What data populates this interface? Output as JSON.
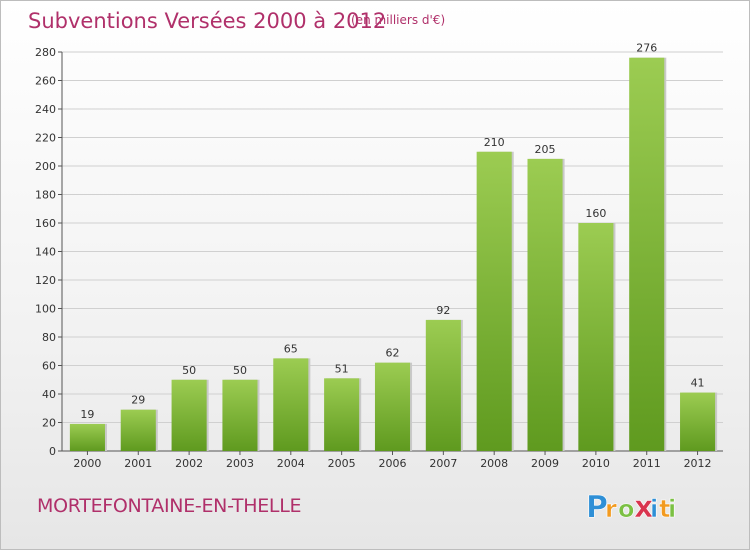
{
  "header": {
    "title": "Subventions Versées 2000 à 2012",
    "unit_note": "(en milliers d'€)"
  },
  "commune": "MORTEFONTAINE-EN-THELLE",
  "logo": {
    "text": "Proxiti",
    "letters": [
      "P",
      "r",
      "o",
      "x",
      "i",
      "t",
      "i"
    ],
    "colors": [
      "#2e8fd6",
      "#f29a1f",
      "#7bc043",
      "#d9344f",
      "#2e8fd6",
      "#f29a1f",
      "#7bc043"
    ]
  },
  "colors": {
    "title": "#b0306a",
    "bar_light": "#9ccc52",
    "bar_dark": "#5f9a1f",
    "grid": "#d0d0d0"
  },
  "chart_data": {
    "type": "bar",
    "title": "Subventions Versées 2000 à 2012",
    "subtitle": "(en milliers d'€)",
    "xlabel": "",
    "ylabel": "",
    "categories": [
      "2000",
      "2001",
      "2002",
      "2003",
      "2004",
      "2005",
      "2006",
      "2007",
      "2008",
      "2009",
      "2010",
      "2011",
      "2012"
    ],
    "values": [
      19,
      29,
      50,
      50,
      65,
      51,
      62,
      92,
      210,
      205,
      160,
      276,
      41
    ],
    "ylim": [
      0,
      280
    ],
    "yticks": [
      0,
      20,
      40,
      60,
      80,
      100,
      120,
      140,
      160,
      180,
      200,
      220,
      240,
      260,
      280
    ],
    "grid": true,
    "legend": "none"
  }
}
